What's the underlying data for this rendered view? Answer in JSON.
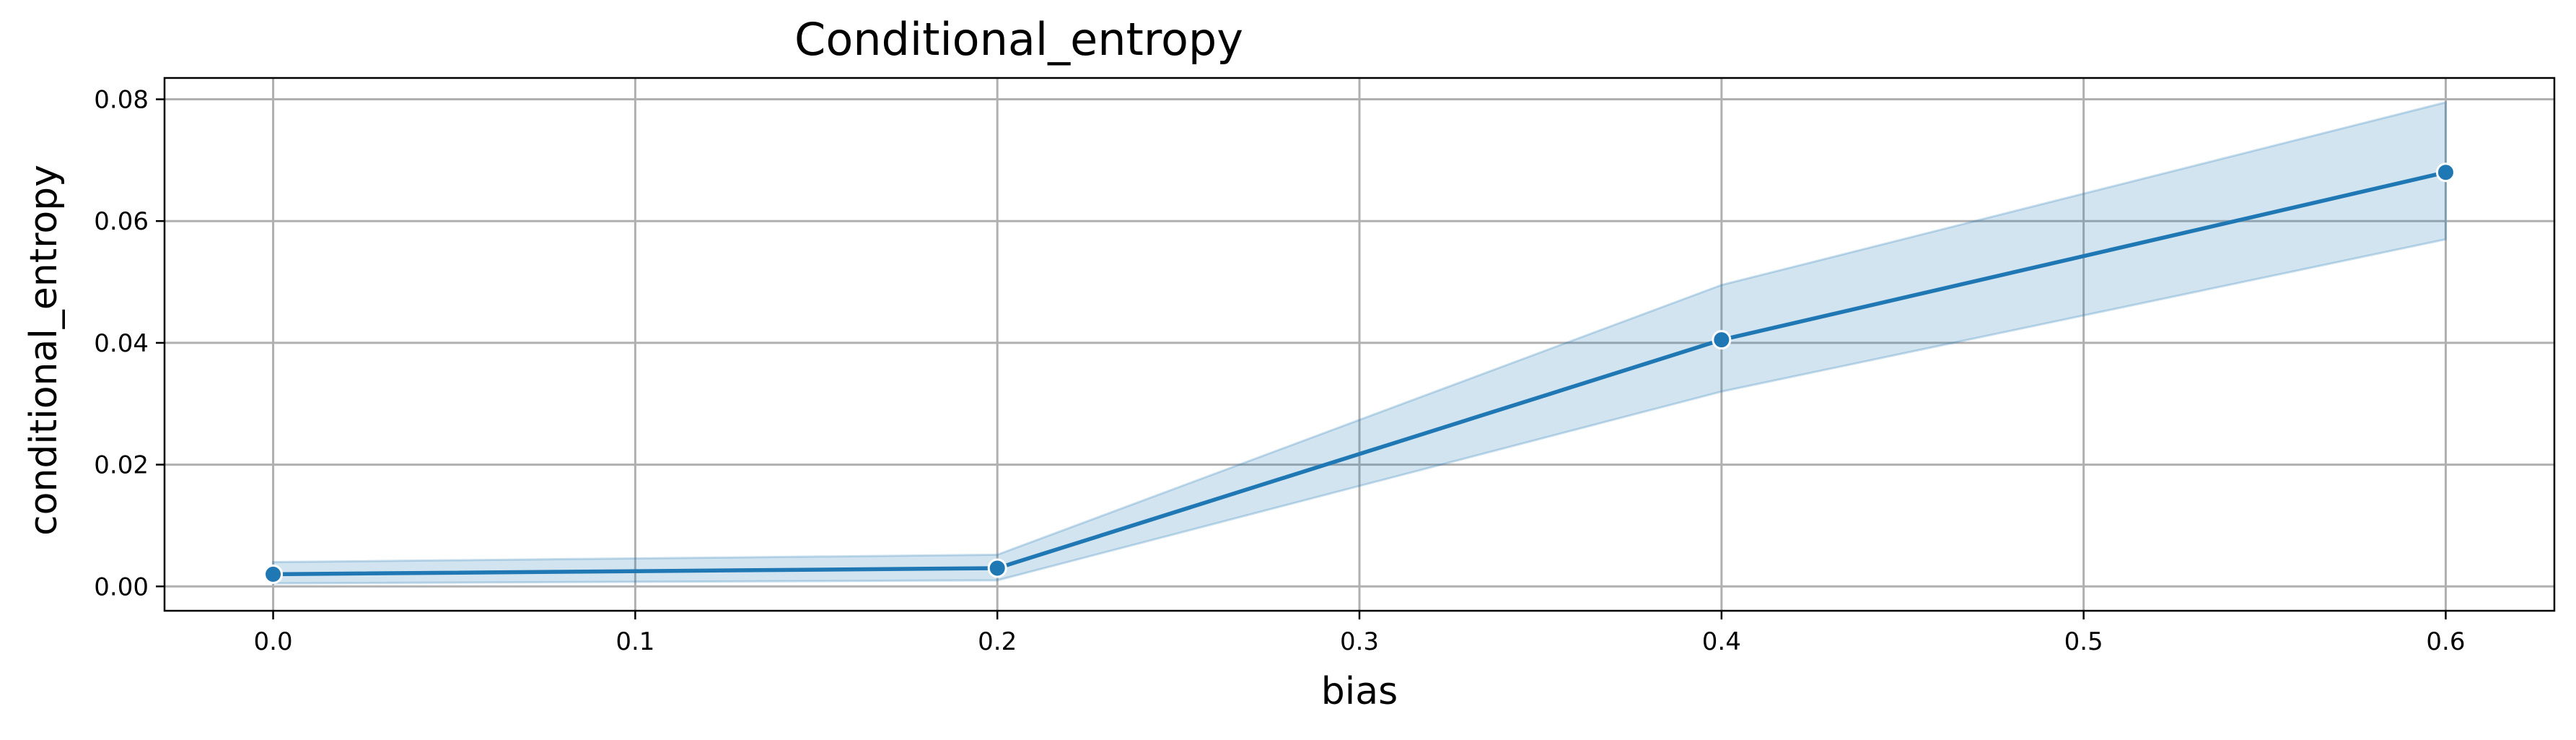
{
  "chart_data": {
    "type": "line",
    "title": "Conditional_entropy",
    "xlabel": "bias",
    "ylabel": "conditional_entropy",
    "xlim": [
      -0.03,
      0.63
    ],
    "ylim": [
      -0.004,
      0.0835
    ],
    "xticks": [
      0.0,
      0.1,
      0.2,
      0.3,
      0.4,
      0.5,
      0.6
    ],
    "xtick_labels": [
      "0.0",
      "0.1",
      "0.2",
      "0.3",
      "0.4",
      "0.5",
      "0.6"
    ],
    "yticks": [
      0.0,
      0.02,
      0.04,
      0.06,
      0.08
    ],
    "ytick_labels": [
      "0.00",
      "0.02",
      "0.04",
      "0.06",
      "0.08"
    ],
    "grid": true,
    "series": [
      {
        "x": [
          0.0,
          0.2,
          0.4,
          0.6
        ],
        "y": [
          0.002,
          0.003,
          0.0405,
          0.068
        ],
        "ci_low": [
          0.0005,
          0.001,
          0.032,
          0.057
        ],
        "ci_high": [
          0.004,
          0.0052,
          0.0495,
          0.0795
        ],
        "color": "#1f77b4",
        "band_color": "#1f77b4",
        "marker": "circle"
      }
    ]
  }
}
